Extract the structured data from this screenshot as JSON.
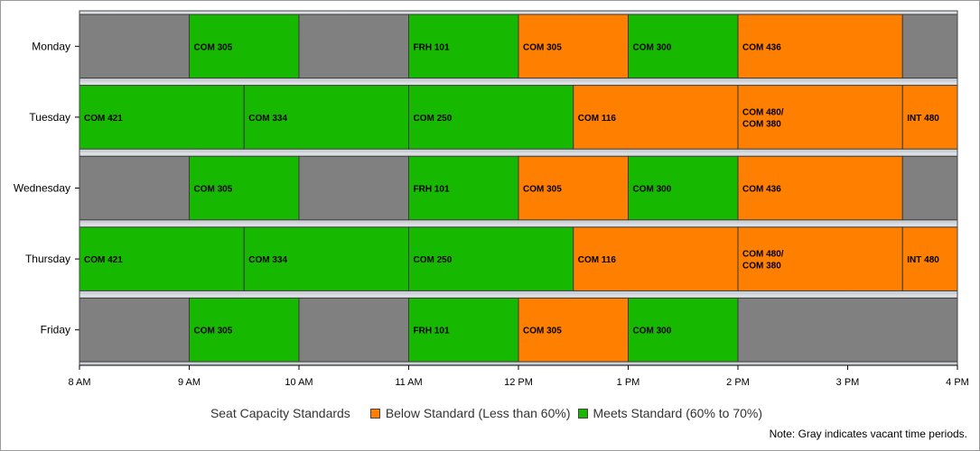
{
  "chart_data": {
    "type": "bar",
    "orientation": "horizontal-timeline",
    "days": [
      "Monday",
      "Tuesday",
      "Wednesday",
      "Thursday",
      "Friday"
    ],
    "x_ticks": [
      "8 AM",
      "9 AM",
      "10 AM",
      "11 AM",
      "12 PM",
      "1 PM",
      "2 PM",
      "3 PM",
      "4 PM"
    ],
    "x_range_hours": [
      8,
      16
    ],
    "grid": true,
    "legend": {
      "title": "Seat Capacity Standards",
      "items": [
        {
          "label": "Below Standard (Less than 60%)",
          "color": "#ff7f00"
        },
        {
          "label": "Meets Standard (60% to 70%)",
          "color": "#17b800"
        }
      ],
      "placement": "bottom"
    },
    "status_colors": {
      "below": "#ff7f00",
      "meets": "#17b800",
      "vacant": "#808080"
    },
    "note": "Note: Gray indicates vacant time periods.",
    "schedule": [
      {
        "day": "Monday",
        "blocks": [
          {
            "start": 8,
            "end": 9,
            "label": "",
            "status": "vacant"
          },
          {
            "start": 9,
            "end": 10,
            "label": "COM 305",
            "status": "meets"
          },
          {
            "start": 10,
            "end": 11,
            "label": "",
            "status": "vacant"
          },
          {
            "start": 11,
            "end": 12,
            "label": "FRH 101",
            "status": "meets"
          },
          {
            "start": 12,
            "end": 13,
            "label": "COM 305",
            "status": "below"
          },
          {
            "start": 13,
            "end": 14,
            "label": "COM 300",
            "status": "meets"
          },
          {
            "start": 14,
            "end": 15.5,
            "label": "COM 436",
            "status": "below"
          },
          {
            "start": 15.5,
            "end": 16,
            "label": "",
            "status": "vacant"
          }
        ]
      },
      {
        "day": "Tuesday",
        "blocks": [
          {
            "start": 8,
            "end": 9.5,
            "label": "COM 421",
            "status": "meets"
          },
          {
            "start": 9.5,
            "end": 11,
            "label": "COM 334",
            "status": "meets"
          },
          {
            "start": 11,
            "end": 12.5,
            "label": "COM 250",
            "status": "meets"
          },
          {
            "start": 12.5,
            "end": 14,
            "label": "COM 116",
            "status": "below"
          },
          {
            "start": 14,
            "end": 15.5,
            "label": "COM 480/\nCOM 380",
            "status": "below"
          },
          {
            "start": 15.5,
            "end": 16,
            "label": "INT 480",
            "status": "below"
          }
        ]
      },
      {
        "day": "Wednesday",
        "blocks": [
          {
            "start": 8,
            "end": 9,
            "label": "",
            "status": "vacant"
          },
          {
            "start": 9,
            "end": 10,
            "label": "COM 305",
            "status": "meets"
          },
          {
            "start": 10,
            "end": 11,
            "label": "",
            "status": "vacant"
          },
          {
            "start": 11,
            "end": 12,
            "label": "FRH 101",
            "status": "meets"
          },
          {
            "start": 12,
            "end": 13,
            "label": "COM 305",
            "status": "below"
          },
          {
            "start": 13,
            "end": 14,
            "label": "COM 300",
            "status": "meets"
          },
          {
            "start": 14,
            "end": 15.5,
            "label": "COM 436",
            "status": "below"
          },
          {
            "start": 15.5,
            "end": 16,
            "label": "",
            "status": "vacant"
          }
        ]
      },
      {
        "day": "Thursday",
        "blocks": [
          {
            "start": 8,
            "end": 9.5,
            "label": "COM 421",
            "status": "meets"
          },
          {
            "start": 9.5,
            "end": 11,
            "label": "COM 334",
            "status": "meets"
          },
          {
            "start": 11,
            "end": 12.5,
            "label": "COM 250",
            "status": "meets"
          },
          {
            "start": 12.5,
            "end": 14,
            "label": "COM 116",
            "status": "below"
          },
          {
            "start": 14,
            "end": 15.5,
            "label": "COM 480/\nCOM 380",
            "status": "below"
          },
          {
            "start": 15.5,
            "end": 16,
            "label": "INT 480",
            "status": "below"
          }
        ]
      },
      {
        "day": "Friday",
        "blocks": [
          {
            "start": 8,
            "end": 9,
            "label": "",
            "status": "vacant"
          },
          {
            "start": 9,
            "end": 10,
            "label": "COM 305",
            "status": "meets"
          },
          {
            "start": 10,
            "end": 11,
            "label": "",
            "status": "vacant"
          },
          {
            "start": 11,
            "end": 12,
            "label": "FRH 101",
            "status": "meets"
          },
          {
            "start": 12,
            "end": 13,
            "label": "COM 305",
            "status": "below"
          },
          {
            "start": 13,
            "end": 14,
            "label": "COM 300",
            "status": "meets"
          },
          {
            "start": 14,
            "end": 16,
            "label": "",
            "status": "vacant"
          }
        ]
      }
    ]
  }
}
